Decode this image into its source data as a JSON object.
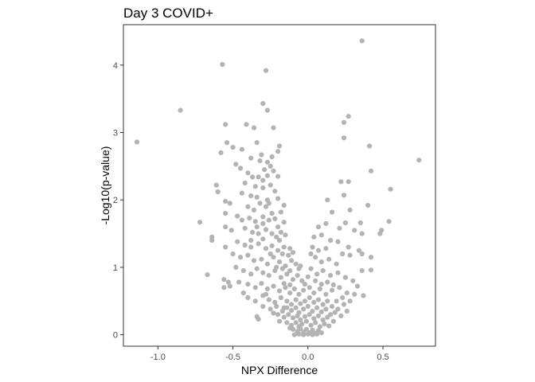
{
  "chart_data": {
    "type": "scatter",
    "title": "Day 3 COVID+",
    "xlabel": "NPX Difference",
    "ylabel": "-Log10(p-value)",
    "xlim": [
      -1.23,
      0.85
    ],
    "ylim": [
      -0.17,
      4.6
    ],
    "x_ticks": [
      -1.0,
      -0.5,
      0.0,
      0.5
    ],
    "x_tick_labels": [
      "-1.0",
      "-0.5",
      "0.0",
      "0.5"
    ],
    "y_ticks": [
      0,
      1,
      2,
      3,
      4
    ],
    "y_tick_labels": [
      "0",
      "1",
      "2",
      "3",
      "4"
    ],
    "grid": false,
    "point_color": "#B3B3B3",
    "frame_color": "#333333",
    "points": [
      [
        0.36,
        4.36
      ],
      [
        -0.57,
        4.01
      ],
      [
        -0.28,
        3.92
      ],
      [
        -0.85,
        3.33
      ],
      [
        -0.3,
        3.43
      ],
      [
        -1.14,
        2.86
      ],
      [
        0.27,
        3.24
      ],
      [
        -0.27,
        3.33
      ],
      [
        0.24,
        3.15
      ],
      [
        0.74,
        2.59
      ],
      [
        -0.55,
        3.12
      ],
      [
        -0.41,
        3.12
      ],
      [
        -0.54,
        2.85
      ],
      [
        -0.36,
        3.07
      ],
      [
        -0.23,
        3.07
      ],
      [
        -0.5,
        2.78
      ],
      [
        -0.44,
        2.75
      ],
      [
        -0.34,
        2.85
      ],
      [
        0.41,
        2.8
      ],
      [
        0.24,
        2.92
      ],
      [
        -0.58,
        2.7
      ],
      [
        -0.31,
        2.67
      ],
      [
        -0.19,
        2.8
      ],
      [
        -0.2,
        2.72
      ],
      [
        -0.24,
        2.64
      ],
      [
        -0.27,
        2.56
      ],
      [
        -0.48,
        2.53
      ],
      [
        -0.45,
        2.47
      ],
      [
        -0.4,
        2.4
      ],
      [
        -0.37,
        2.34
      ],
      [
        -0.33,
        2.34
      ],
      [
        -0.3,
        2.29
      ],
      [
        -0.27,
        2.36
      ],
      [
        -0.25,
        2.22
      ],
      [
        -0.23,
        2.43
      ],
      [
        -0.29,
        2.45
      ],
      [
        0.42,
        2.43
      ],
      [
        0.22,
        2.27
      ],
      [
        0.27,
        2.27
      ],
      [
        0.55,
        2.16
      ],
      [
        -0.61,
        2.22
      ],
      [
        -0.6,
        2.12
      ],
      [
        -0.44,
        2.1
      ],
      [
        -0.38,
        2.06
      ],
      [
        -0.34,
        2.04
      ],
      [
        -0.3,
        2.18
      ],
      [
        -0.27,
        2.0
      ],
      [
        -0.22,
        2.13
      ],
      [
        -0.2,
        2.02
      ],
      [
        0.24,
        2.07
      ],
      [
        0.13,
        2.0
      ],
      [
        -0.55,
        1.98
      ],
      [
        -0.52,
        1.95
      ],
      [
        -0.4,
        1.9
      ],
      [
        -0.36,
        1.85
      ],
      [
        -0.32,
        1.95
      ],
      [
        -0.28,
        1.9
      ],
      [
        -0.24,
        1.8
      ],
      [
        -0.18,
        1.82
      ],
      [
        -0.16,
        1.92
      ],
      [
        0.16,
        1.82
      ],
      [
        0.28,
        1.85
      ],
      [
        0.4,
        1.92
      ],
      [
        -0.55,
        1.8
      ],
      [
        -0.47,
        1.76
      ],
      [
        -0.44,
        1.7
      ],
      [
        -0.39,
        1.73
      ],
      [
        -0.35,
        1.68
      ],
      [
        -0.3,
        1.65
      ],
      [
        -0.26,
        1.7
      ],
      [
        -0.2,
        1.6
      ],
      [
        -0.16,
        1.67
      ],
      [
        -0.72,
        1.67
      ],
      [
        0.35,
        1.66
      ],
      [
        0.54,
        1.68
      ],
      [
        0.07,
        1.6
      ],
      [
        0.12,
        1.65
      ],
      [
        0.21,
        1.58
      ],
      [
        0.25,
        1.66
      ],
      [
        -0.55,
        1.6
      ],
      [
        -0.51,
        1.55
      ],
      [
        -0.42,
        1.58
      ],
      [
        -0.37,
        1.52
      ],
      [
        -0.33,
        1.5
      ],
      [
        -0.28,
        1.56
      ],
      [
        -0.24,
        1.5
      ],
      [
        -0.21,
        1.45
      ],
      [
        -0.18,
        1.52
      ],
      [
        -0.15,
        1.48
      ],
      [
        -0.64,
        1.45
      ],
      [
        -0.64,
        1.4
      ],
      [
        0.31,
        1.55
      ],
      [
        0.36,
        1.5
      ],
      [
        0.48,
        1.5
      ],
      [
        0.49,
        1.55
      ],
      [
        0.04,
        1.45
      ],
      [
        0.09,
        1.48
      ],
      [
        0.15,
        1.4
      ],
      [
        -0.47,
        1.38
      ],
      [
        -0.42,
        1.33
      ],
      [
        -0.38,
        1.3
      ],
      [
        -0.33,
        1.35
      ],
      [
        -0.28,
        1.28
      ],
      [
        -0.24,
        1.32
      ],
      [
        -0.2,
        1.25
      ],
      [
        -0.16,
        1.3
      ],
      [
        -0.12,
        1.28
      ],
      [
        -0.1,
        1.22
      ],
      [
        -0.55,
        1.3
      ],
      [
        0.2,
        1.38
      ],
      [
        0.27,
        1.3
      ],
      [
        0.34,
        1.25
      ],
      [
        0.03,
        1.3
      ],
      [
        0.07,
        1.25
      ],
      [
        0.12,
        1.28
      ],
      [
        -0.5,
        1.2
      ],
      [
        -0.45,
        1.15
      ],
      [
        -0.4,
        1.18
      ],
      [
        -0.36,
        1.1
      ],
      [
        -0.31,
        1.12
      ],
      [
        -0.27,
        1.05
      ],
      [
        -0.23,
        1.15
      ],
      [
        -0.19,
        1.08
      ],
      [
        -0.15,
        1.02
      ],
      [
        -0.11,
        1.1
      ],
      [
        -0.08,
        1.05
      ],
      [
        -0.06,
        0.98
      ],
      [
        0.05,
        1.15
      ],
      [
        0.09,
        1.08
      ],
      [
        0.14,
        1.12
      ],
      [
        0.19,
        1.05
      ],
      [
        0.23,
        1.2
      ],
      [
        0.28,
        1.18
      ],
      [
        0.36,
        1.2
      ],
      [
        0.42,
        1.15
      ],
      [
        0.36,
        0.95
      ],
      [
        0.42,
        0.96
      ],
      [
        -0.48,
        1.0
      ],
      [
        -0.43,
        0.95
      ],
      [
        -0.38,
        0.9
      ],
      [
        -0.34,
        0.98
      ],
      [
        -0.3,
        0.92
      ],
      [
        -0.26,
        0.88
      ],
      [
        -0.22,
        0.95
      ],
      [
        -0.18,
        0.85
      ],
      [
        -0.14,
        0.9
      ],
      [
        -0.1,
        0.82
      ],
      [
        -0.07,
        0.88
      ],
      [
        -0.04,
        0.8
      ],
      [
        0.02,
        0.98
      ],
      [
        0.06,
        0.9
      ],
      [
        0.1,
        0.95
      ],
      [
        0.15,
        0.88
      ],
      [
        0.2,
        0.92
      ],
      [
        0.25,
        0.85
      ],
      [
        0.3,
        0.8
      ],
      [
        -0.67,
        0.89
      ],
      [
        -0.56,
        0.82
      ],
      [
        -0.53,
        0.78
      ],
      [
        -0.56,
        0.7
      ],
      [
        -0.52,
        0.72
      ],
      [
        -0.46,
        0.78
      ],
      [
        -0.4,
        0.75
      ],
      [
        -0.35,
        0.7
      ],
      [
        -0.31,
        0.76
      ],
      [
        -0.27,
        0.68
      ],
      [
        -0.23,
        0.72
      ],
      [
        -0.19,
        0.65
      ],
      [
        -0.15,
        0.7
      ],
      [
        -0.12,
        0.62
      ],
      [
        -0.09,
        0.68
      ],
      [
        -0.06,
        0.6
      ],
      [
        -0.03,
        0.66
      ],
      [
        0.01,
        0.7
      ],
      [
        0.04,
        0.62
      ],
      [
        0.08,
        0.68
      ],
      [
        0.12,
        0.6
      ],
      [
        0.16,
        0.66
      ],
      [
        0.21,
        0.7
      ],
      [
        0.26,
        0.62
      ],
      [
        0.23,
        0.55
      ],
      [
        0.19,
        0.5
      ],
      [
        -0.4,
        0.55
      ],
      [
        -0.35,
        0.5
      ],
      [
        -0.3,
        0.58
      ],
      [
        -0.26,
        0.52
      ],
      [
        -0.22,
        0.48
      ],
      [
        -0.18,
        0.55
      ],
      [
        -0.14,
        0.5
      ],
      [
        -0.11,
        0.45
      ],
      [
        -0.08,
        0.52
      ],
      [
        -0.05,
        0.46
      ],
      [
        -0.02,
        0.5
      ],
      [
        0.01,
        0.55
      ],
      [
        0.04,
        0.48
      ],
      [
        0.07,
        0.52
      ],
      [
        0.1,
        0.45
      ],
      [
        0.13,
        0.5
      ],
      [
        0.16,
        0.42
      ],
      [
        0.2,
        0.38
      ],
      [
        0.24,
        0.45
      ],
      [
        -0.3,
        0.42
      ],
      [
        -0.25,
        0.38
      ],
      [
        -0.21,
        0.42
      ],
      [
        -0.17,
        0.35
      ],
      [
        -0.14,
        0.4
      ],
      [
        -0.11,
        0.36
      ],
      [
        -0.08,
        0.4
      ],
      [
        -0.06,
        0.33
      ],
      [
        -0.03,
        0.38
      ],
      [
        0.0,
        0.42
      ],
      [
        0.03,
        0.35
      ],
      [
        0.06,
        0.4
      ],
      [
        0.09,
        0.34
      ],
      [
        0.12,
        0.38
      ],
      [
        0.15,
        0.3
      ],
      [
        0.18,
        0.33
      ],
      [
        -0.2,
        0.3
      ],
      [
        -0.16,
        0.26
      ],
      [
        -0.13,
        0.3
      ],
      [
        -0.1,
        0.25
      ],
      [
        -0.07,
        0.28
      ],
      [
        -0.05,
        0.22
      ],
      [
        -0.02,
        0.27
      ],
      [
        0.01,
        0.3
      ],
      [
        0.04,
        0.24
      ],
      [
        0.07,
        0.28
      ],
      [
        0.1,
        0.22
      ],
      [
        0.13,
        0.26
      ],
      [
        -0.34,
        0.27
      ],
      [
        -0.33,
        0.23
      ],
      [
        -0.14,
        0.18
      ],
      [
        -0.11,
        0.14
      ],
      [
        -0.08,
        0.18
      ],
      [
        -0.06,
        0.12
      ],
      [
        -0.04,
        0.16
      ],
      [
        -0.01,
        0.2
      ],
      [
        0.02,
        0.14
      ],
      [
        0.05,
        0.18
      ],
      [
        0.08,
        0.12
      ],
      [
        0.11,
        0.16
      ],
      [
        -0.1,
        0.08
      ],
      [
        -0.07,
        0.05
      ],
      [
        -0.05,
        0.09
      ],
      [
        -0.03,
        0.04
      ],
      [
        -0.01,
        0.08
      ],
      [
        0.01,
        0.03
      ],
      [
        0.03,
        0.07
      ],
      [
        0.05,
        0.02
      ],
      [
        0.07,
        0.06
      ],
      [
        0.09,
        0.03
      ],
      [
        -0.09,
        0.0
      ],
      [
        -0.06,
        0.01
      ],
      [
        -0.03,
        0.0
      ],
      [
        0.0,
        0.01
      ],
      [
        0.03,
        0.0
      ],
      [
        0.06,
        0.01
      ],
      [
        -0.12,
        0.1
      ],
      [
        -0.16,
        0.4
      ],
      [
        -0.19,
        0.2
      ],
      [
        0.14,
        0.13
      ],
      [
        0.17,
        0.2
      ],
      [
        -0.23,
        0.32
      ],
      [
        0.22,
        0.28
      ],
      [
        0.26,
        0.35
      ],
      [
        0.28,
        0.5
      ],
      [
        0.31,
        0.6
      ],
      [
        -0.28,
        0.6
      ],
      [
        -0.43,
        0.62
      ],
      [
        -0.38,
        1.4
      ],
      [
        -0.34,
        1.6
      ],
      [
        -0.3,
        1.75
      ],
      [
        -0.22,
        1.72
      ],
      [
        -0.19,
        1.4
      ],
      [
        -0.17,
        1.2
      ],
      [
        -0.13,
        1.18
      ],
      [
        -0.12,
        0.95
      ],
      [
        -0.05,
        1.02
      ],
      [
        0.02,
        1.2
      ],
      [
        0.0,
        0.86
      ],
      [
        -0.02,
        0.75
      ],
      [
        0.05,
        0.8
      ],
      [
        0.09,
        0.75
      ],
      [
        0.13,
        0.78
      ],
      [
        0.17,
        0.74
      ],
      [
        0.33,
        0.72
      ],
      [
        0.37,
        0.58
      ],
      [
        -0.2,
        2.35
      ],
      [
        -0.25,
        2.5
      ],
      [
        -0.32,
        2.58
      ],
      [
        -0.38,
        2.62
      ],
      [
        -0.42,
        2.25
      ],
      [
        -0.35,
        2.2
      ],
      [
        -0.26,
        1.95
      ],
      [
        -0.3,
        1.42
      ],
      [
        -0.25,
        1.2
      ],
      [
        -0.21,
        1.0
      ],
      [
        -0.17,
        0.98
      ],
      [
        -0.16,
        0.76
      ],
      [
        -0.12,
        0.74
      ]
    ]
  }
}
